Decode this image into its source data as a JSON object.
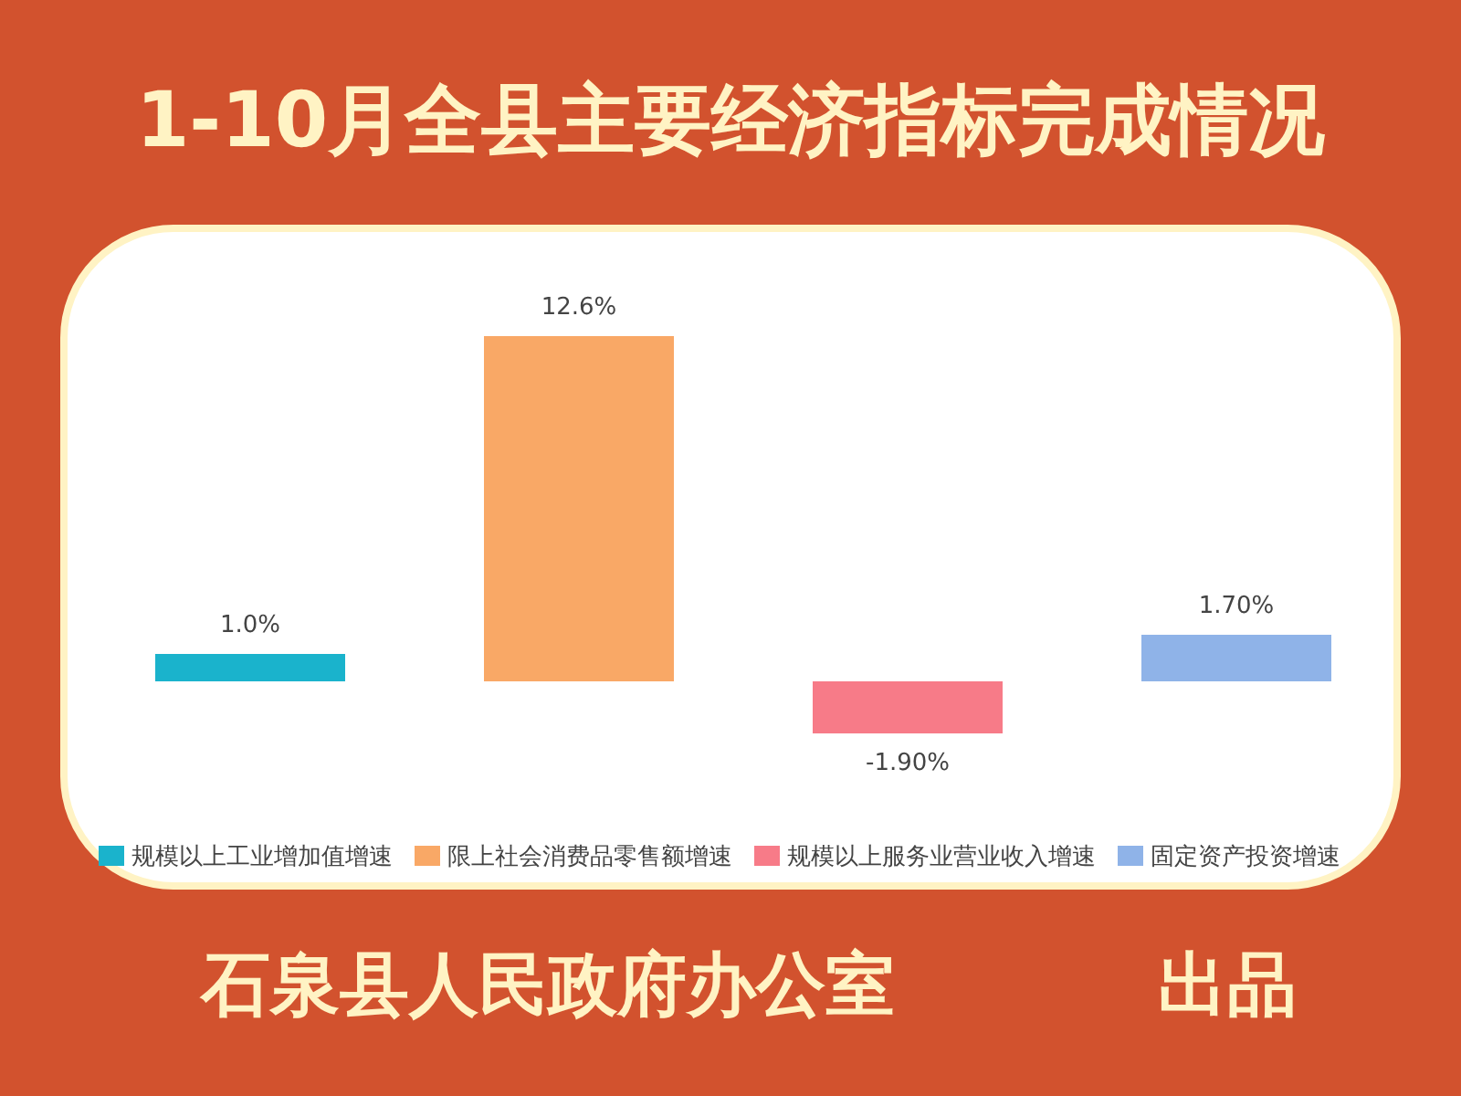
{
  "chart_data": {
    "type": "bar",
    "title": "1-10月全县主要经济指标完成情况",
    "categories": [
      "规模以上工业增加值增速",
      "限上社会消费品零售额增速",
      "规模以上服务业营业收入增速",
      "固定资产投资增速"
    ],
    "values": [
      1.0,
      12.6,
      -1.9,
      1.7
    ],
    "value_labels": [
      "1.0%",
      "12.6%",
      "-1.90%",
      "1.70%"
    ],
    "colors": [
      "#1ab3cc",
      "#f9a866",
      "#f77b88",
      "#8fb3e8"
    ],
    "annotations": [
      "石泉县人民政府办公室",
      "出品"
    ]
  }
}
